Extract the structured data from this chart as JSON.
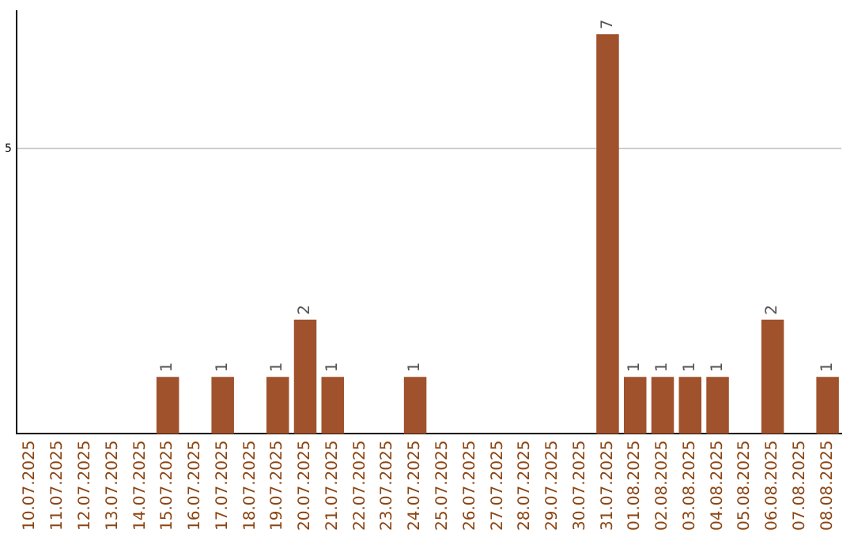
{
  "chart_data": {
    "type": "bar",
    "categories": [
      "10.07.2025",
      "11.07.2025",
      "12.07.2025",
      "13.07.2025",
      "14.07.2025",
      "15.07.2025",
      "16.07.2025",
      "17.07.2025",
      "18.07.2025",
      "19.07.2025",
      "20.07.2025",
      "21.07.2025",
      "22.07.2025",
      "23.07.2025",
      "24.07.2025",
      "25.07.2025",
      "26.07.2025",
      "27.07.2025",
      "28.07.2025",
      "29.07.2025",
      "30.07.2025",
      "31.07.2025",
      "01.08.2025",
      "02.08.2025",
      "03.08.2025",
      "04.08.2025",
      "05.08.2025",
      "06.08.2025",
      "07.08.2025",
      "08.08.2025"
    ],
    "values": [
      null,
      null,
      null,
      null,
      null,
      1,
      null,
      1,
      null,
      1,
      2,
      1,
      null,
      null,
      1,
      null,
      null,
      null,
      null,
      null,
      null,
      7,
      1,
      1,
      1,
      1,
      null,
      2,
      null,
      1
    ],
    "color": "#a0522d",
    "ylim": [
      0,
      7.4
    ],
    "yticks": [
      5
    ],
    "grid": "y",
    "legend": false,
    "data_labels": true
  }
}
